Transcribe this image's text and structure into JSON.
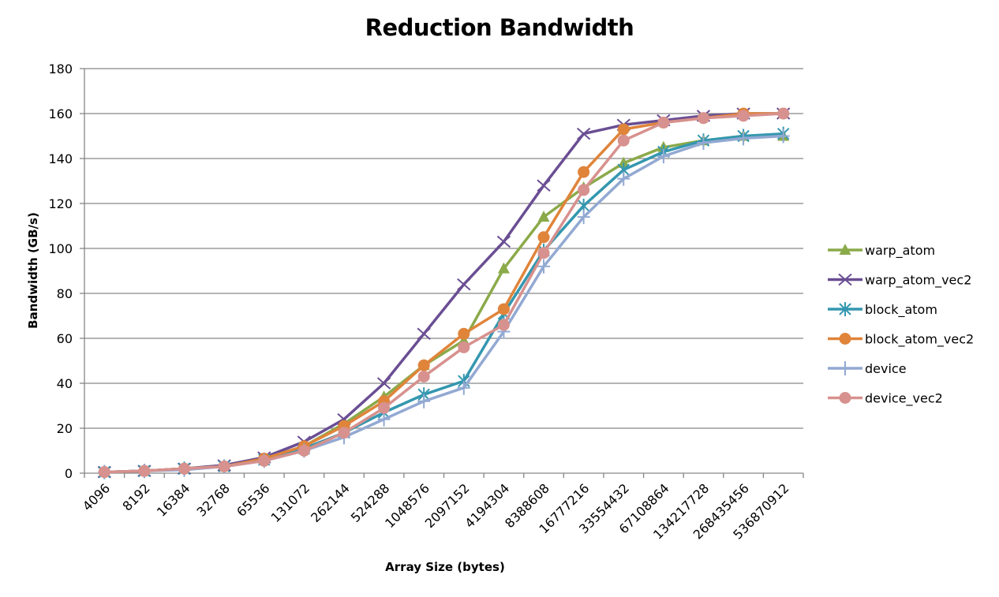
{
  "chart_data": {
    "type": "line",
    "title": "Reduction Bandwidth",
    "xlabel": "Array Size (bytes)",
    "ylabel": "Bandwidth (GB/s)",
    "ylim": [
      0,
      180
    ],
    "yticks": [
      0,
      20,
      40,
      60,
      80,
      100,
      120,
      140,
      160,
      180
    ],
    "grid": "horizontal",
    "legend_position": "right",
    "categories": [
      "4096",
      "8192",
      "16384",
      "32768",
      "65536",
      "131072",
      "262144",
      "524288",
      "1048576",
      "2097152",
      "4194304",
      "8388608",
      "16777216",
      "33554432",
      "67108864",
      "134217728",
      "268435456",
      "536870912"
    ],
    "series": [
      {
        "name": "warp_atom",
        "color": "#8BAA4A",
        "marker": "triangle",
        "values": [
          0.5,
          1,
          2,
          3.5,
          6.5,
          12,
          22,
          34,
          48,
          59,
          91,
          114,
          127,
          138,
          145,
          148,
          150,
          150
        ]
      },
      {
        "name": "warp_atom_vec2",
        "color": "#6A4E93",
        "marker": "x",
        "values": [
          0.5,
          1,
          2,
          3.5,
          7,
          14,
          24,
          40,
          62,
          84,
          103,
          128,
          151,
          155,
          157,
          159,
          160,
          160
        ]
      },
      {
        "name": "block_atom",
        "color": "#3497AF",
        "marker": "asterisk",
        "values": [
          0.5,
          1,
          2,
          3,
          6,
          11,
          18,
          27,
          35,
          41,
          71,
          99,
          119,
          135,
          143,
          148,
          150,
          151
        ]
      },
      {
        "name": "block_atom_vec2",
        "color": "#E0843A",
        "marker": "circle",
        "values": [
          0.5,
          1,
          2,
          3,
          6.5,
          12,
          21,
          32,
          48,
          62,
          73,
          105,
          134,
          153,
          156,
          158,
          160,
          160
        ]
      },
      {
        "name": "device",
        "color": "#92A9D2",
        "marker": "plus",
        "values": [
          0.5,
          1,
          1.5,
          3,
          5.5,
          10,
          16,
          24,
          32,
          38,
          63,
          92,
          114,
          131,
          141,
          147,
          149,
          150
        ]
      },
      {
        "name": "device_vec2",
        "color": "#D7918E",
        "marker": "circle",
        "values": [
          0.5,
          1,
          2,
          3,
          5.5,
          10,
          18,
          29,
          43,
          56,
          66,
          98,
          126,
          148,
          156,
          158,
          159,
          160
        ]
      }
    ]
  }
}
